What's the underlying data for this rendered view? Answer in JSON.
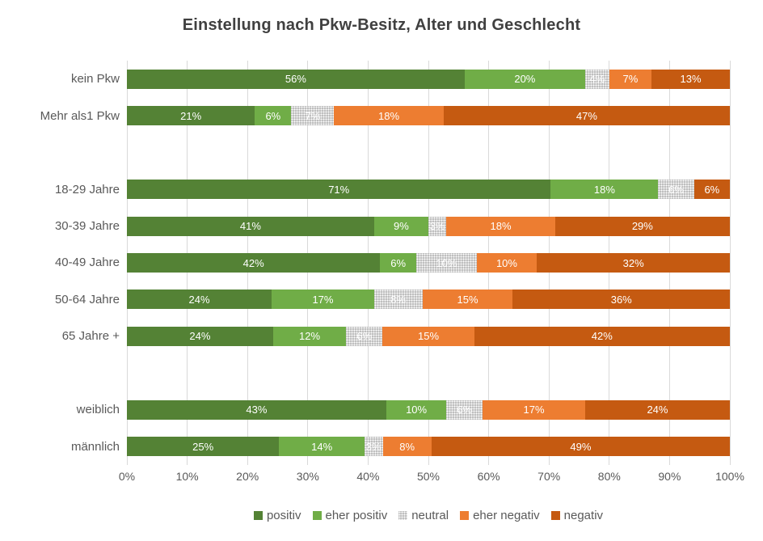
{
  "title": "Einstellung nach Pkw-Besitz, Alter und Geschlecht",
  "chart_data": {
    "type": "bar",
    "orientation": "horizontal",
    "stacked": true,
    "normalized_to_100": true,
    "title": "Einstellung nach Pkw-Besitz, Alter und Geschlecht",
    "categories": [
      "kein Pkw",
      "Mehr als1 Pkw",
      "18-29 Jahre",
      "30-39 Jahre",
      "40-49 Jahre",
      "50-64 Jahre",
      "65 Jahre +",
      "weiblich",
      "männlich"
    ],
    "row_slots": [
      0,
      1,
      3,
      4,
      5,
      6,
      7,
      9,
      10
    ],
    "slot_count": 11,
    "series": [
      {
        "name": "positiv",
        "color": "#548235",
        "pattern": "solid",
        "values": [
          56,
          21,
          71,
          41,
          42,
          24,
          24,
          43,
          25
        ]
      },
      {
        "name": "eher positiv",
        "color": "#70AD47",
        "pattern": "solid",
        "values": [
          20,
          6,
          18,
          9,
          6,
          17,
          12,
          10,
          14
        ]
      },
      {
        "name": "neutral",
        "color": "#BFBFBF",
        "pattern": "dotted",
        "values": [
          4,
          7,
          6,
          3,
          10,
          8,
          6,
          6,
          3
        ]
      },
      {
        "name": "eher negativ",
        "color": "#ED7D31",
        "pattern": "solid",
        "values": [
          7,
          18,
          0,
          18,
          10,
          15,
          15,
          17,
          8
        ]
      },
      {
        "name": "negativ",
        "color": "#C55A11",
        "pattern": "solid",
        "values": [
          13,
          47,
          6,
          29,
          32,
          36,
          42,
          24,
          49
        ]
      }
    ],
    "label_suffix": "%",
    "x_ticks": [
      "0%",
      "10%",
      "20%",
      "30%",
      "40%",
      "50%",
      "60%",
      "70%",
      "80%",
      "90%",
      "100%"
    ],
    "xlim": [
      0,
      100
    ],
    "grid": true,
    "legend_position": "bottom"
  },
  "colors": {
    "title_text": "#404040",
    "axis_text": "#595959",
    "data_label_text": "#FFFFFF",
    "gridline": "#D9D9D9",
    "background": "#FFFFFF"
  }
}
